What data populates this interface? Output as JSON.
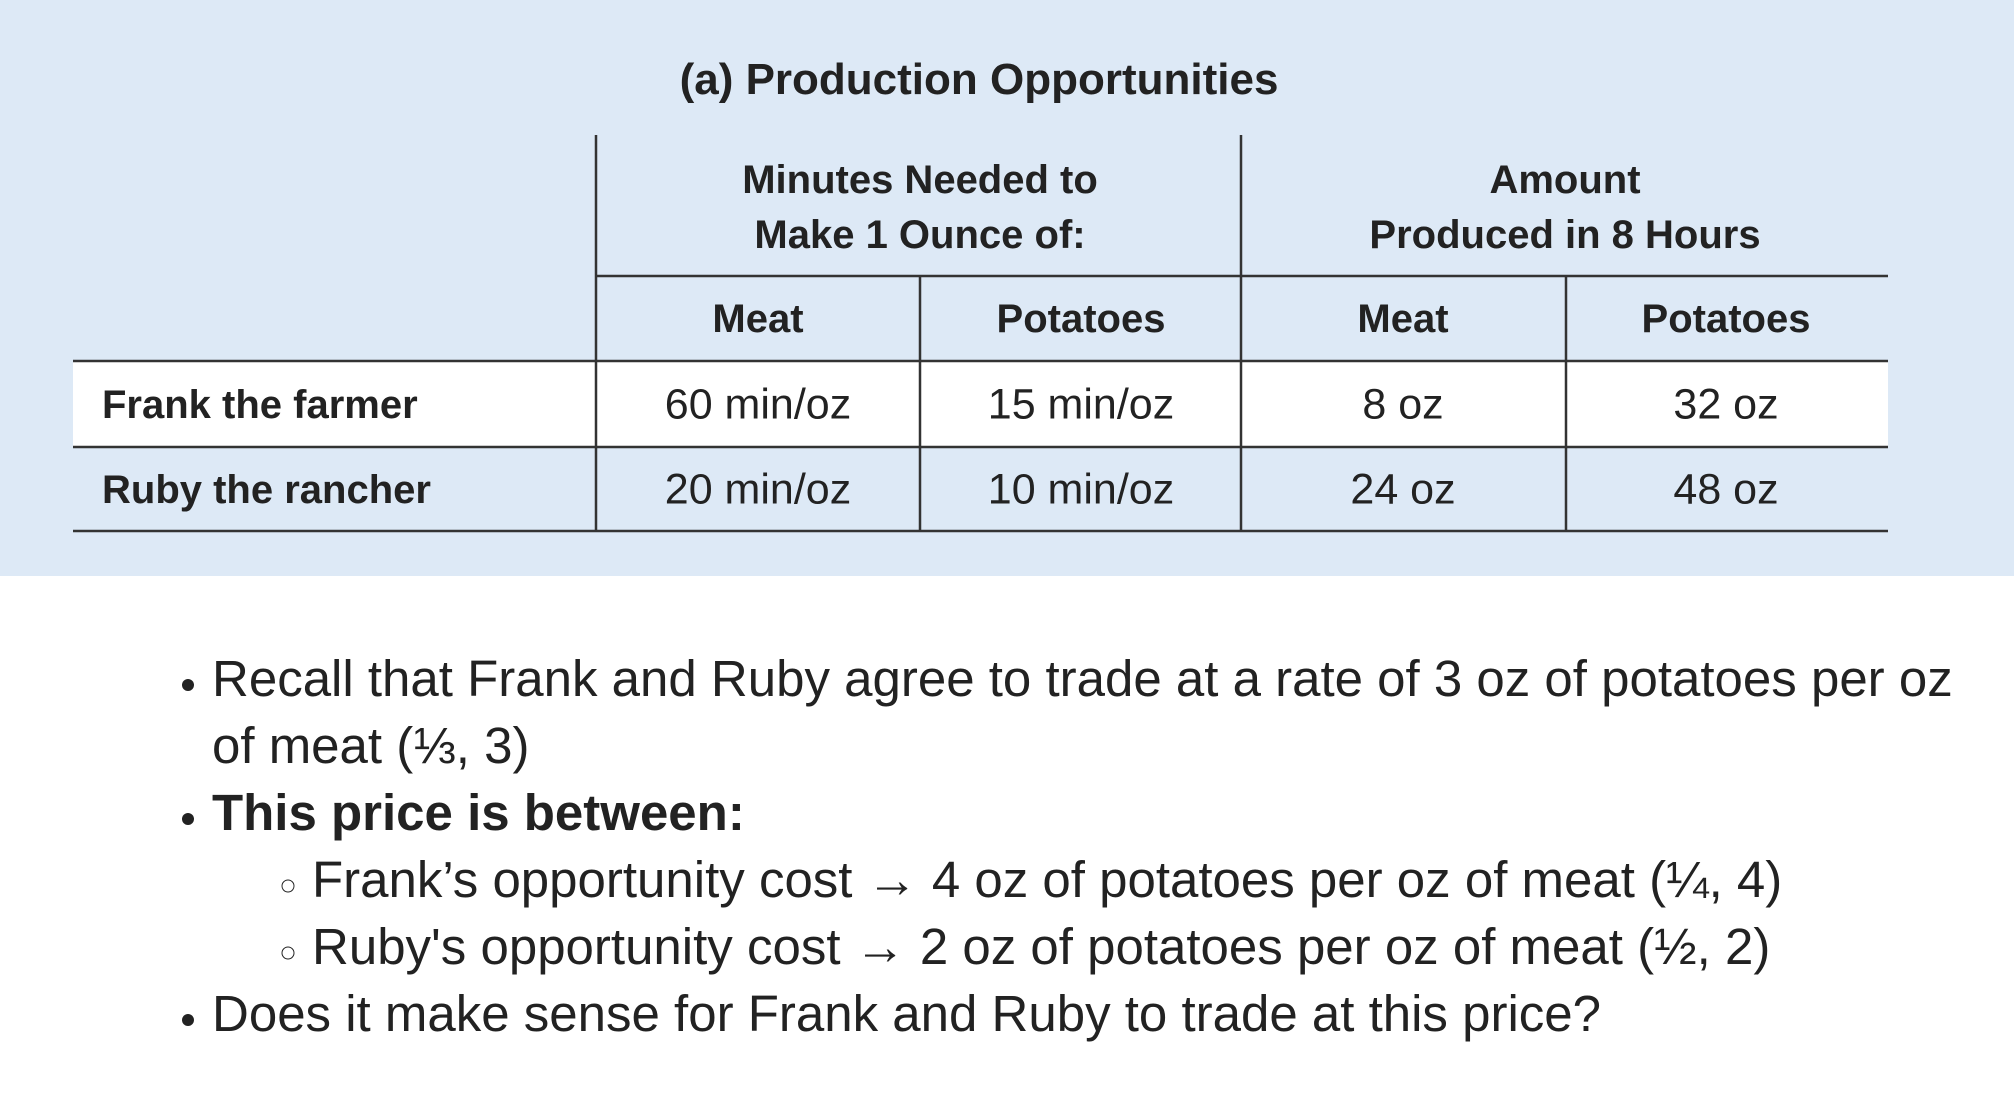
{
  "table": {
    "title": "(a) Production Opportunities",
    "header_groups": [
      [
        "Minutes Needed to",
        "Make 1 Ounce of:"
      ],
      [
        "Amount",
        "Produced in 8 Hours"
      ]
    ],
    "columns": [
      "Meat",
      "Potatoes",
      "Meat",
      "Potatoes"
    ],
    "rows": [
      [
        "Frank the farmer",
        "60 min/oz",
        "15 min/oz",
        "8 oz",
        "32 oz"
      ],
      [
        "Ruby the rancher",
        "20 min/oz",
        "10 min/oz",
        "24 oz",
        "48 oz"
      ]
    ]
  },
  "bullets": [
    {
      "text": "Recall that Frank and Ruby agree to trade at a rate of 3 oz of potatoes per oz of meat (⅓, 3)"
    },
    {
      "text": "This price is between:",
      "items": [
        "Frank’s opportunity cost → 4 oz of potatoes per oz of meat (¼, 4)",
        "Ruby's opportunity cost → 2 oz of potatoes per oz of meat (½, 2)"
      ]
    },
    {
      "text": "Does it make sense for Frank and Ruby to trade at this price?"
    }
  ]
}
